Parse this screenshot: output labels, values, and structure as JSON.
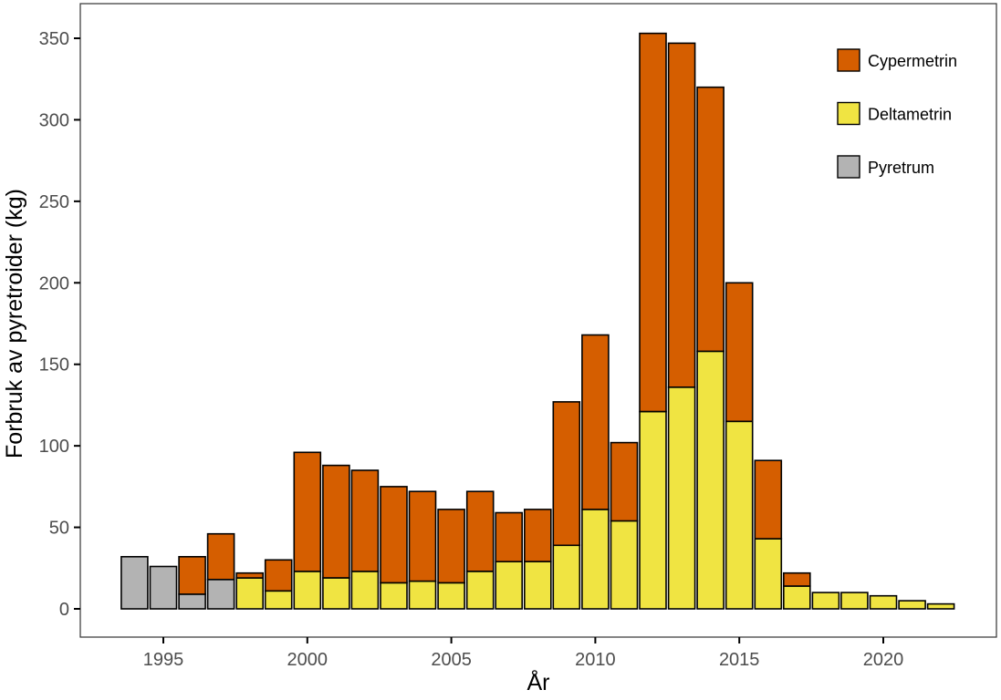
{
  "chart_data": {
    "type": "bar",
    "stacked": true,
    "title": "",
    "xlabel": "År",
    "ylabel": "Forbruk av pyretroider (kg)",
    "ylim": [
      -17,
      368
    ],
    "xlim": [
      1992.4,
      2024.2
    ],
    "grid": false,
    "legend_position": "top-right inside",
    "x_ticks": [
      1995,
      2000,
      2005,
      2010,
      2015,
      2020
    ],
    "y_ticks": [
      0,
      50,
      100,
      150,
      200,
      250,
      300,
      350
    ],
    "categories": [
      1994,
      1995,
      1996,
      1997,
      1998,
      1999,
      2000,
      2001,
      2002,
      2003,
      2004,
      2005,
      2006,
      2007,
      2008,
      2009,
      2010,
      2011,
      2012,
      2013,
      2014,
      2015,
      2016,
      2017,
      2018,
      2019,
      2020,
      2021,
      2022
    ],
    "series": [
      {
        "name": "Pyretrum",
        "color": "#b3b3b3",
        "values": [
          32,
          26,
          9,
          18,
          0,
          0,
          0,
          0,
          0,
          0,
          0,
          0,
          0,
          0,
          0,
          0,
          0,
          0,
          0,
          0,
          0,
          0,
          0,
          0,
          0,
          0,
          0,
          0,
          0
        ]
      },
      {
        "name": "Deltametrin",
        "color": "#f0e442",
        "values": [
          0,
          0,
          0,
          0,
          19,
          11,
          23,
          19,
          23,
          16,
          17,
          16,
          23,
          29,
          29,
          39,
          61,
          54,
          121,
          136,
          158,
          115,
          43,
          14,
          10,
          10,
          8,
          5,
          3
        ]
      },
      {
        "name": "Cypermetrin",
        "color": "#d55e00",
        "values": [
          0,
          0,
          23,
          28,
          3,
          19,
          73,
          69,
          62,
          59,
          55,
          45,
          49,
          30,
          32,
          88,
          107,
          48,
          232,
          211,
          162,
          85,
          48,
          8,
          0,
          0,
          0,
          0,
          0
        ]
      }
    ],
    "totals": [
      32,
      26,
      32,
      46,
      22,
      30,
      96,
      88,
      85,
      75,
      72,
      61,
      72,
      59,
      61,
      127,
      168,
      102,
      353,
      347,
      320,
      200,
      91,
      22,
      10,
      10,
      8,
      5,
      3
    ]
  },
  "legend": {
    "items": [
      {
        "label": "Cypermetrin",
        "color": "#d55e00"
      },
      {
        "label": "Deltametrin",
        "color": "#f0e442"
      },
      {
        "label": "Pyretrum",
        "color": "#b3b3b3"
      }
    ]
  }
}
